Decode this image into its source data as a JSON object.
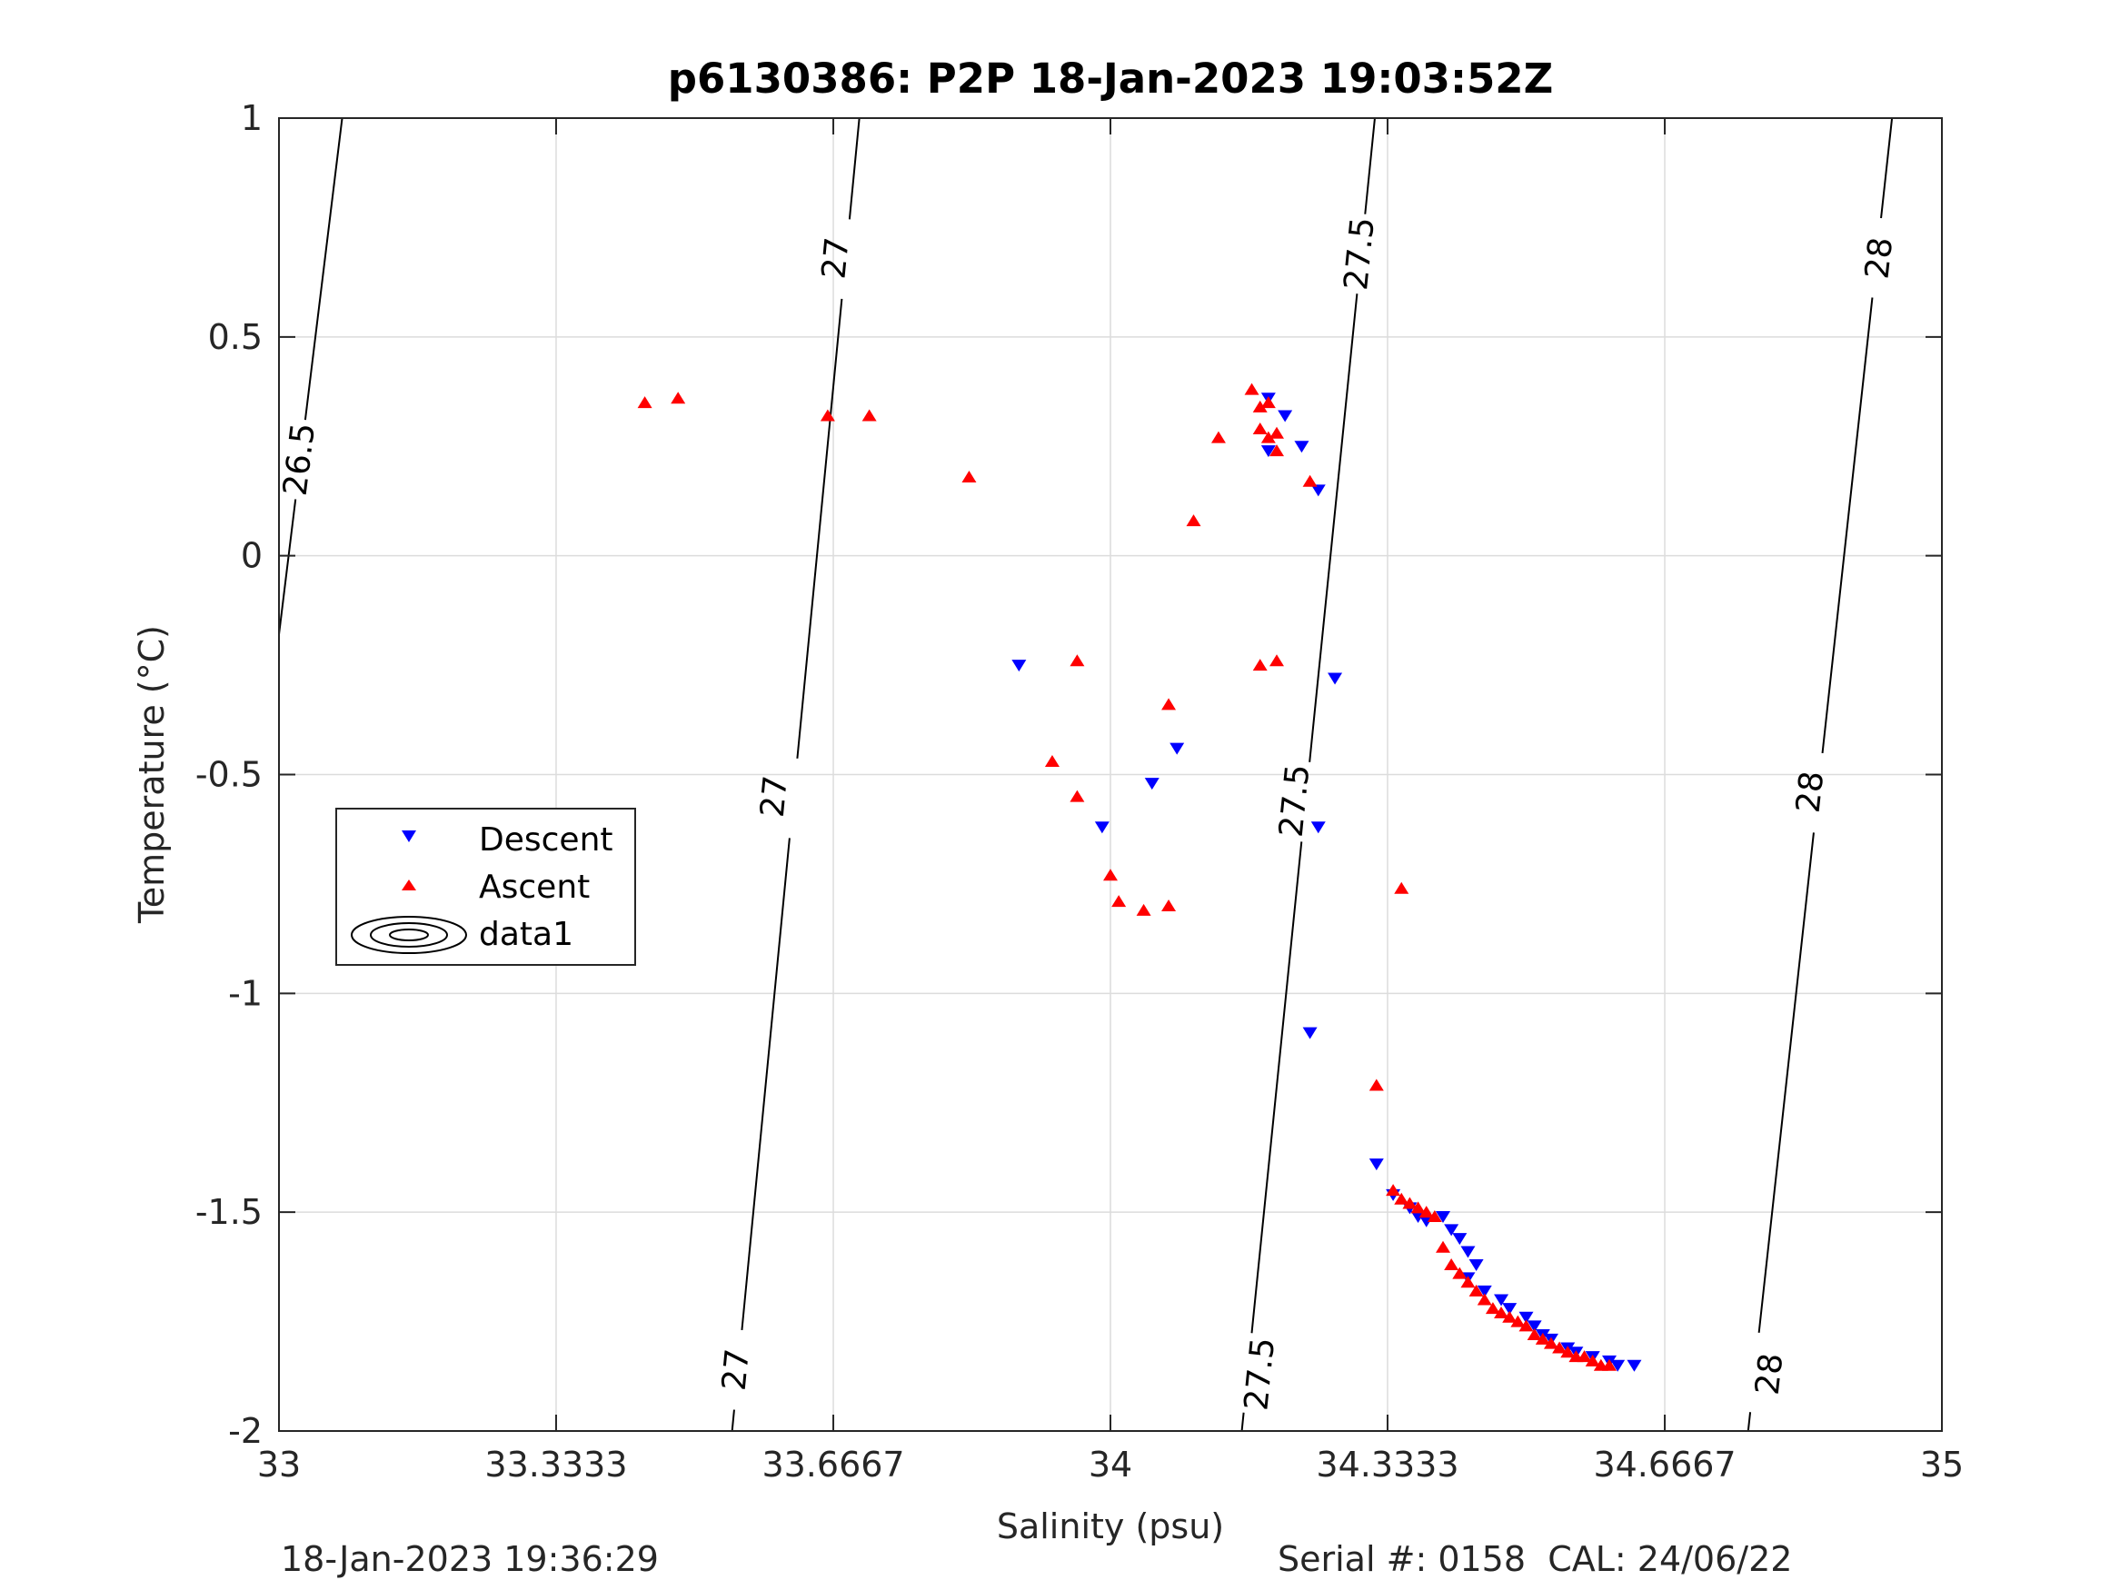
{
  "chart_data": {
    "type": "scatter",
    "title": "p6130386: P2P 18-Jan-2023 19:03:52Z",
    "xlabel": "Salinity (psu)",
    "ylabel": "Temperature (°C)",
    "xlim": [
      33,
      35
    ],
    "ylim": [
      -2,
      1
    ],
    "xticks": [
      33,
      33.3333,
      33.6667,
      34,
      34.3333,
      34.6667,
      35
    ],
    "xtick_labels": [
      "33",
      "33.3333",
      "33.6667",
      "34",
      "34.3333",
      "34.6667",
      "35"
    ],
    "yticks": [
      -2,
      -1.5,
      -1,
      -0.5,
      0,
      0.5,
      1
    ],
    "ytick_labels": [
      "-2",
      "-1.5",
      "-1",
      "-0.5",
      "0",
      "0.5",
      "1"
    ],
    "grid": true,
    "legend_position": "left-middle",
    "colors": {
      "descent": "#0000ff",
      "ascent": "#ff0000",
      "contour": "#000000"
    },
    "series": [
      {
        "name": "Descent",
        "marker": "triangle-down",
        "points": [
          [
            34.19,
            0.36
          ],
          [
            34.21,
            0.32
          ],
          [
            34.19,
            0.24
          ],
          [
            34.23,
            0.25
          ],
          [
            34.25,
            0.15
          ],
          [
            33.89,
            -0.25
          ],
          [
            34.27,
            -0.28
          ],
          [
            34.08,
            -0.44
          ],
          [
            34.05,
            -0.52
          ],
          [
            33.99,
            -0.62
          ],
          [
            34.25,
            -0.62
          ],
          [
            34.24,
            -1.09
          ],
          [
            34.32,
            -1.39
          ],
          [
            34.34,
            -1.46
          ],
          [
            34.36,
            -1.49
          ],
          [
            34.37,
            -1.51
          ],
          [
            34.38,
            -1.52
          ],
          [
            34.4,
            -1.51
          ],
          [
            34.41,
            -1.54
          ],
          [
            34.42,
            -1.56
          ],
          [
            34.43,
            -1.59
          ],
          [
            34.44,
            -1.62
          ],
          [
            34.43,
            -1.65
          ],
          [
            34.45,
            -1.68
          ],
          [
            34.47,
            -1.7
          ],
          [
            34.48,
            -1.72
          ],
          [
            34.5,
            -1.74
          ],
          [
            34.51,
            -1.76
          ],
          [
            34.52,
            -1.78
          ],
          [
            34.53,
            -1.79
          ],
          [
            34.55,
            -1.81
          ],
          [
            34.56,
            -1.82
          ],
          [
            34.58,
            -1.83
          ],
          [
            34.6,
            -1.84
          ],
          [
            34.61,
            -1.85
          ],
          [
            34.63,
            -1.85
          ]
        ]
      },
      {
        "name": "Ascent",
        "marker": "triangle-up",
        "points": [
          [
            33.44,
            0.35
          ],
          [
            33.48,
            0.36
          ],
          [
            33.66,
            0.32
          ],
          [
            33.71,
            0.32
          ],
          [
            33.83,
            0.18
          ],
          [
            34.13,
            0.27
          ],
          [
            34.17,
            0.38
          ],
          [
            34.18,
            0.34
          ],
          [
            34.19,
            0.35
          ],
          [
            34.18,
            0.29
          ],
          [
            34.2,
            0.28
          ],
          [
            34.19,
            0.27
          ],
          [
            34.2,
            0.24
          ],
          [
            34.24,
            0.17
          ],
          [
            34.1,
            0.08
          ],
          [
            33.96,
            -0.24
          ],
          [
            33.93,
            -0.47
          ],
          [
            33.96,
            -0.55
          ],
          [
            34.07,
            -0.34
          ],
          [
            34.18,
            -0.25
          ],
          [
            34.2,
            -0.24
          ],
          [
            34.0,
            -0.73
          ],
          [
            34.01,
            -0.79
          ],
          [
            34.04,
            -0.81
          ],
          [
            34.07,
            -0.8
          ],
          [
            34.35,
            -0.76
          ],
          [
            34.32,
            -1.21
          ],
          [
            34.34,
            -1.45
          ],
          [
            34.35,
            -1.47
          ],
          [
            34.36,
            -1.48
          ],
          [
            34.37,
            -1.49
          ],
          [
            34.38,
            -1.5
          ],
          [
            34.39,
            -1.51
          ],
          [
            34.4,
            -1.58
          ],
          [
            34.41,
            -1.62
          ],
          [
            34.42,
            -1.64
          ],
          [
            34.43,
            -1.66
          ],
          [
            34.44,
            -1.68
          ],
          [
            34.45,
            -1.7
          ],
          [
            34.46,
            -1.72
          ],
          [
            34.47,
            -1.73
          ],
          [
            34.48,
            -1.74
          ],
          [
            34.49,
            -1.75
          ],
          [
            34.5,
            -1.76
          ],
          [
            34.51,
            -1.78
          ],
          [
            34.52,
            -1.79
          ],
          [
            34.53,
            -1.8
          ],
          [
            34.54,
            -1.81
          ],
          [
            34.55,
            -1.82
          ],
          [
            34.56,
            -1.83
          ],
          [
            34.57,
            -1.83
          ],
          [
            34.58,
            -1.84
          ],
          [
            34.59,
            -1.85
          ],
          [
            34.6,
            -1.85
          ]
        ]
      },
      {
        "name": "data1",
        "type": "contour",
        "lines": [
          {
            "level": "26.5",
            "points": [
              [
                33.0,
                -0.18
              ],
              [
                33.076,
                1.0
              ]
            ],
            "label_points": [
              [
                33.025,
                0.22
              ]
            ]
          },
          {
            "level": "27",
            "points": [
              [
                33.545,
                -2.0
              ],
              [
                33.698,
                1.0
              ]
            ],
            "label_points": [
              [
                33.67,
                0.68
              ],
              [
                33.596,
                -0.55
              ],
              [
                33.55,
                -1.86
              ]
            ]
          },
          {
            "level": "27.5",
            "points": [
              [
                34.158,
                -2.0
              ],
              [
                34.318,
                1.0
              ]
            ],
            "label_points": [
              [
                34.3,
                0.69
              ],
              [
                34.222,
                -0.56
              ],
              [
                34.18,
                -1.87
              ]
            ]
          },
          {
            "level": "28",
            "points": [
              [
                34.767,
                -2.0
              ],
              [
                34.94,
                1.0
              ]
            ],
            "label_points": [
              [
                34.925,
                0.68
              ],
              [
                34.842,
                -0.54
              ],
              [
                34.793,
                -1.87
              ]
            ]
          }
        ]
      }
    ],
    "legend": [
      "Descent",
      "Ascent",
      "data1"
    ]
  },
  "footer": {
    "left": "18-Jan-2023 19:36:29",
    "right": "Serial #: 0158  CAL: 24/06/22"
  }
}
